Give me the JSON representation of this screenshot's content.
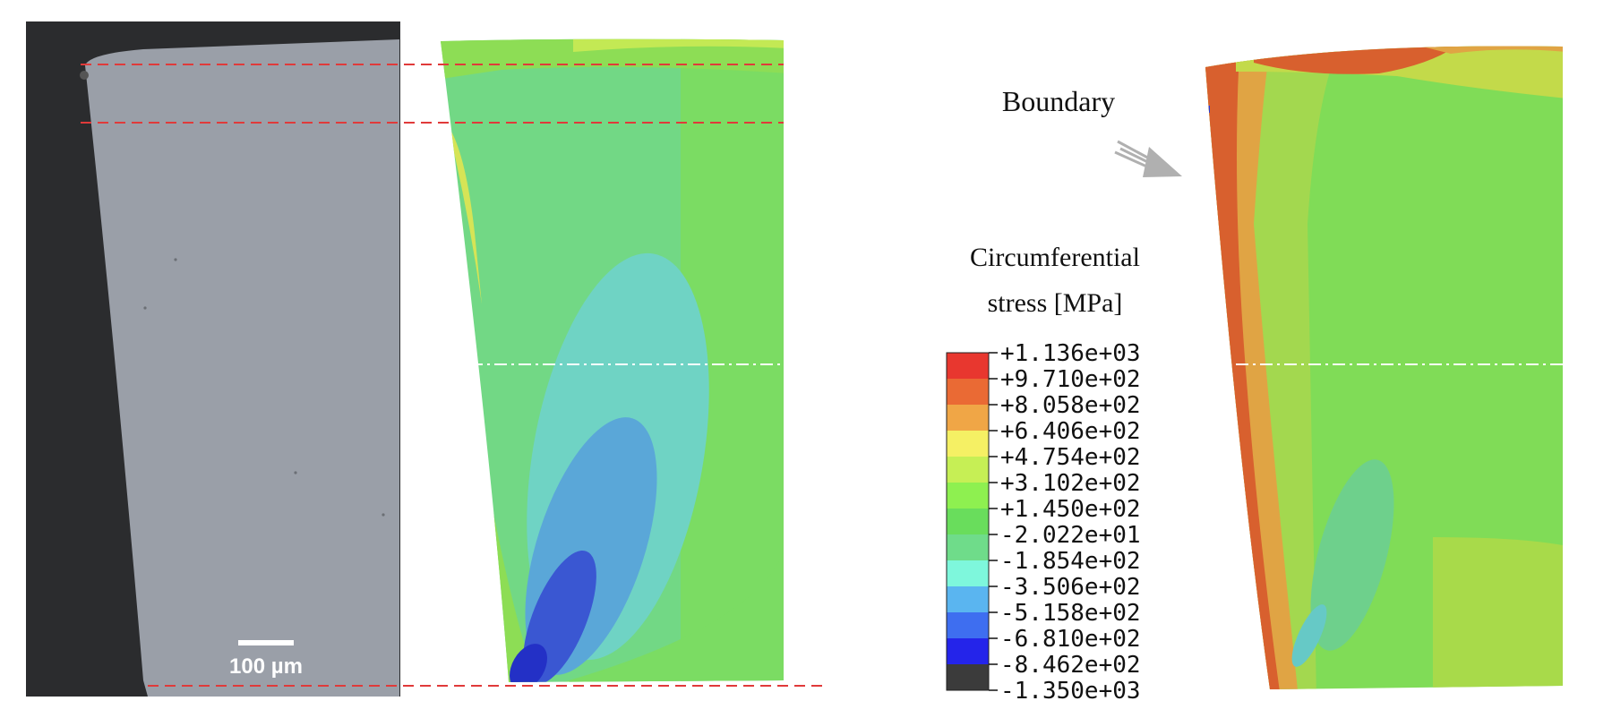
{
  "scale_bar": {
    "label": "100 µm"
  },
  "annotation": {
    "boundary_label": "Boundary"
  },
  "legend": {
    "title_line1": "Circumferential",
    "title_line2": "stress [MPa]",
    "entries": [
      {
        "value": "+1.136e+03",
        "color": "#e8372f"
      },
      {
        "value": "+9.710e+02",
        "color": "#ea6a34"
      },
      {
        "value": "+8.058e+02",
        "color": "#f0a646"
      },
      {
        "value": "+6.406e+02",
        "color": "#f5f064"
      },
      {
        "value": "+4.754e+02",
        "color": "#c6ef55"
      },
      {
        "value": "+3.102e+02",
        "color": "#8ef050"
      },
      {
        "value": "+1.450e+02",
        "color": "#69dd5c"
      },
      {
        "value": "-2.022e+01",
        "color": "#6fdc8a"
      },
      {
        "value": "-1.854e+02",
        "color": "#7ef7dc"
      },
      {
        "value": "-3.506e+02",
        "color": "#5ab5f0"
      },
      {
        "value": "-5.158e+02",
        "color": "#3e6ef0"
      },
      {
        "value": "-6.810e+02",
        "color": "#2424ea"
      },
      {
        "value": "-8.462e+02",
        "color": "#3b3b3b"
      },
      {
        "value": "-1.350e+03",
        "color": null
      }
    ]
  },
  "colors": {
    "micrograph_bg": "#2b2c2e",
    "micrograph_specimen": "#9a9fa8",
    "guide_line": "#e03a3a",
    "arrow": "#b0b0b0"
  }
}
